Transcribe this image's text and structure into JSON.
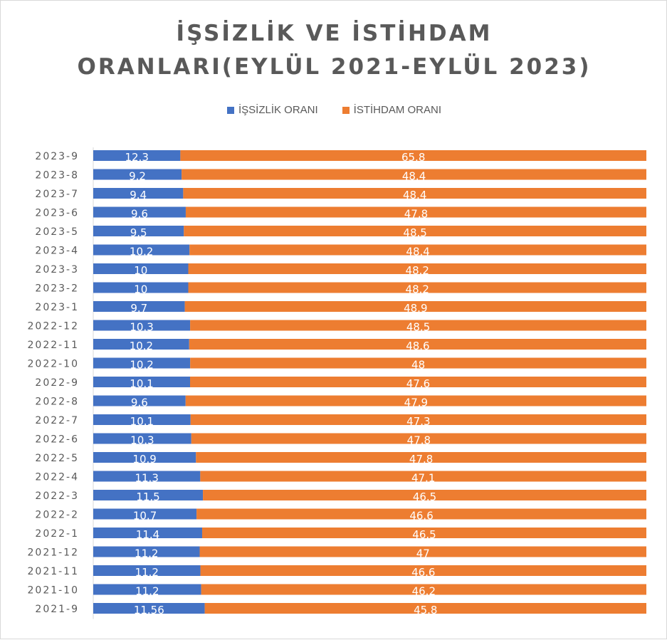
{
  "chart_data": {
    "type": "bar",
    "orientation": "horizontal",
    "stacked": true,
    "title_lines": [
      "İŞSİZLİK VE İSTİHDAM",
      "ORANLARI(EYLÜL 2021-EYLÜL 2023)"
    ],
    "legend_placement": "top",
    "categories": [
      "2023-9",
      "2023-8",
      "2023-7",
      "2023-6",
      "2023-5",
      "2023-4",
      "2023-3",
      "2023-2",
      "2023-1",
      "2022-12",
      "2022-11",
      "2022-10",
      "2022-9",
      "2022-8",
      "2022-7",
      "2022-6",
      "2022-5",
      "2022-4",
      "2022-3",
      "2022-2",
      "2022-1",
      "2021-12",
      "2021-11",
      "2021-10",
      "2021-9"
    ],
    "series": [
      {
        "name": "İŞSİZLİK ORANI",
        "color": "#4472c4",
        "values": [
          12.3,
          9.2,
          9.4,
          9.6,
          9.5,
          10.2,
          10,
          10,
          9.7,
          10.3,
          10.2,
          10.2,
          10.1,
          9.6,
          10.1,
          10.3,
          10.9,
          11.3,
          11.5,
          10.7,
          11.4,
          11.2,
          11.2,
          11.2,
          11.56
        ],
        "labels": [
          "12.3",
          "9.2",
          "9.4",
          "9.6",
          "9.5",
          "10.2",
          "10",
          "10",
          "9.7",
          "10.3",
          "10.2",
          "10.2",
          "10.1",
          "9.6",
          "10.1",
          "10.3",
          "10.9",
          "11.3",
          "11.5",
          "10.7",
          "11.4",
          "11.2",
          "11.2",
          "11.2",
          "11.56"
        ]
      },
      {
        "name": "İSTİHDAM ORANI",
        "color": "#ed7d31",
        "values": [
          65.8,
          48.4,
          48.4,
          47.8,
          48.5,
          48.4,
          48.2,
          48.2,
          48.9,
          48.5,
          48.6,
          48,
          47.6,
          47.9,
          47.3,
          47.8,
          47.8,
          47.1,
          46.5,
          46.6,
          46.5,
          47,
          46.6,
          46.2,
          45.8
        ],
        "labels": [
          "65.8",
          "48.4",
          "48.4",
          "47.8",
          "48.5",
          "48.4",
          "48.2",
          "48.2",
          "48.9",
          "48.5",
          "48.6",
          "48",
          "47.6",
          "47.9",
          "47.3",
          "47.8",
          "47.8",
          "47.1",
          "46.5",
          "46.6",
          "46.5",
          "47",
          "46.6",
          "46.2",
          "45.8"
        ]
      }
    ],
    "scale": "100% stacked",
    "grid": false
  }
}
